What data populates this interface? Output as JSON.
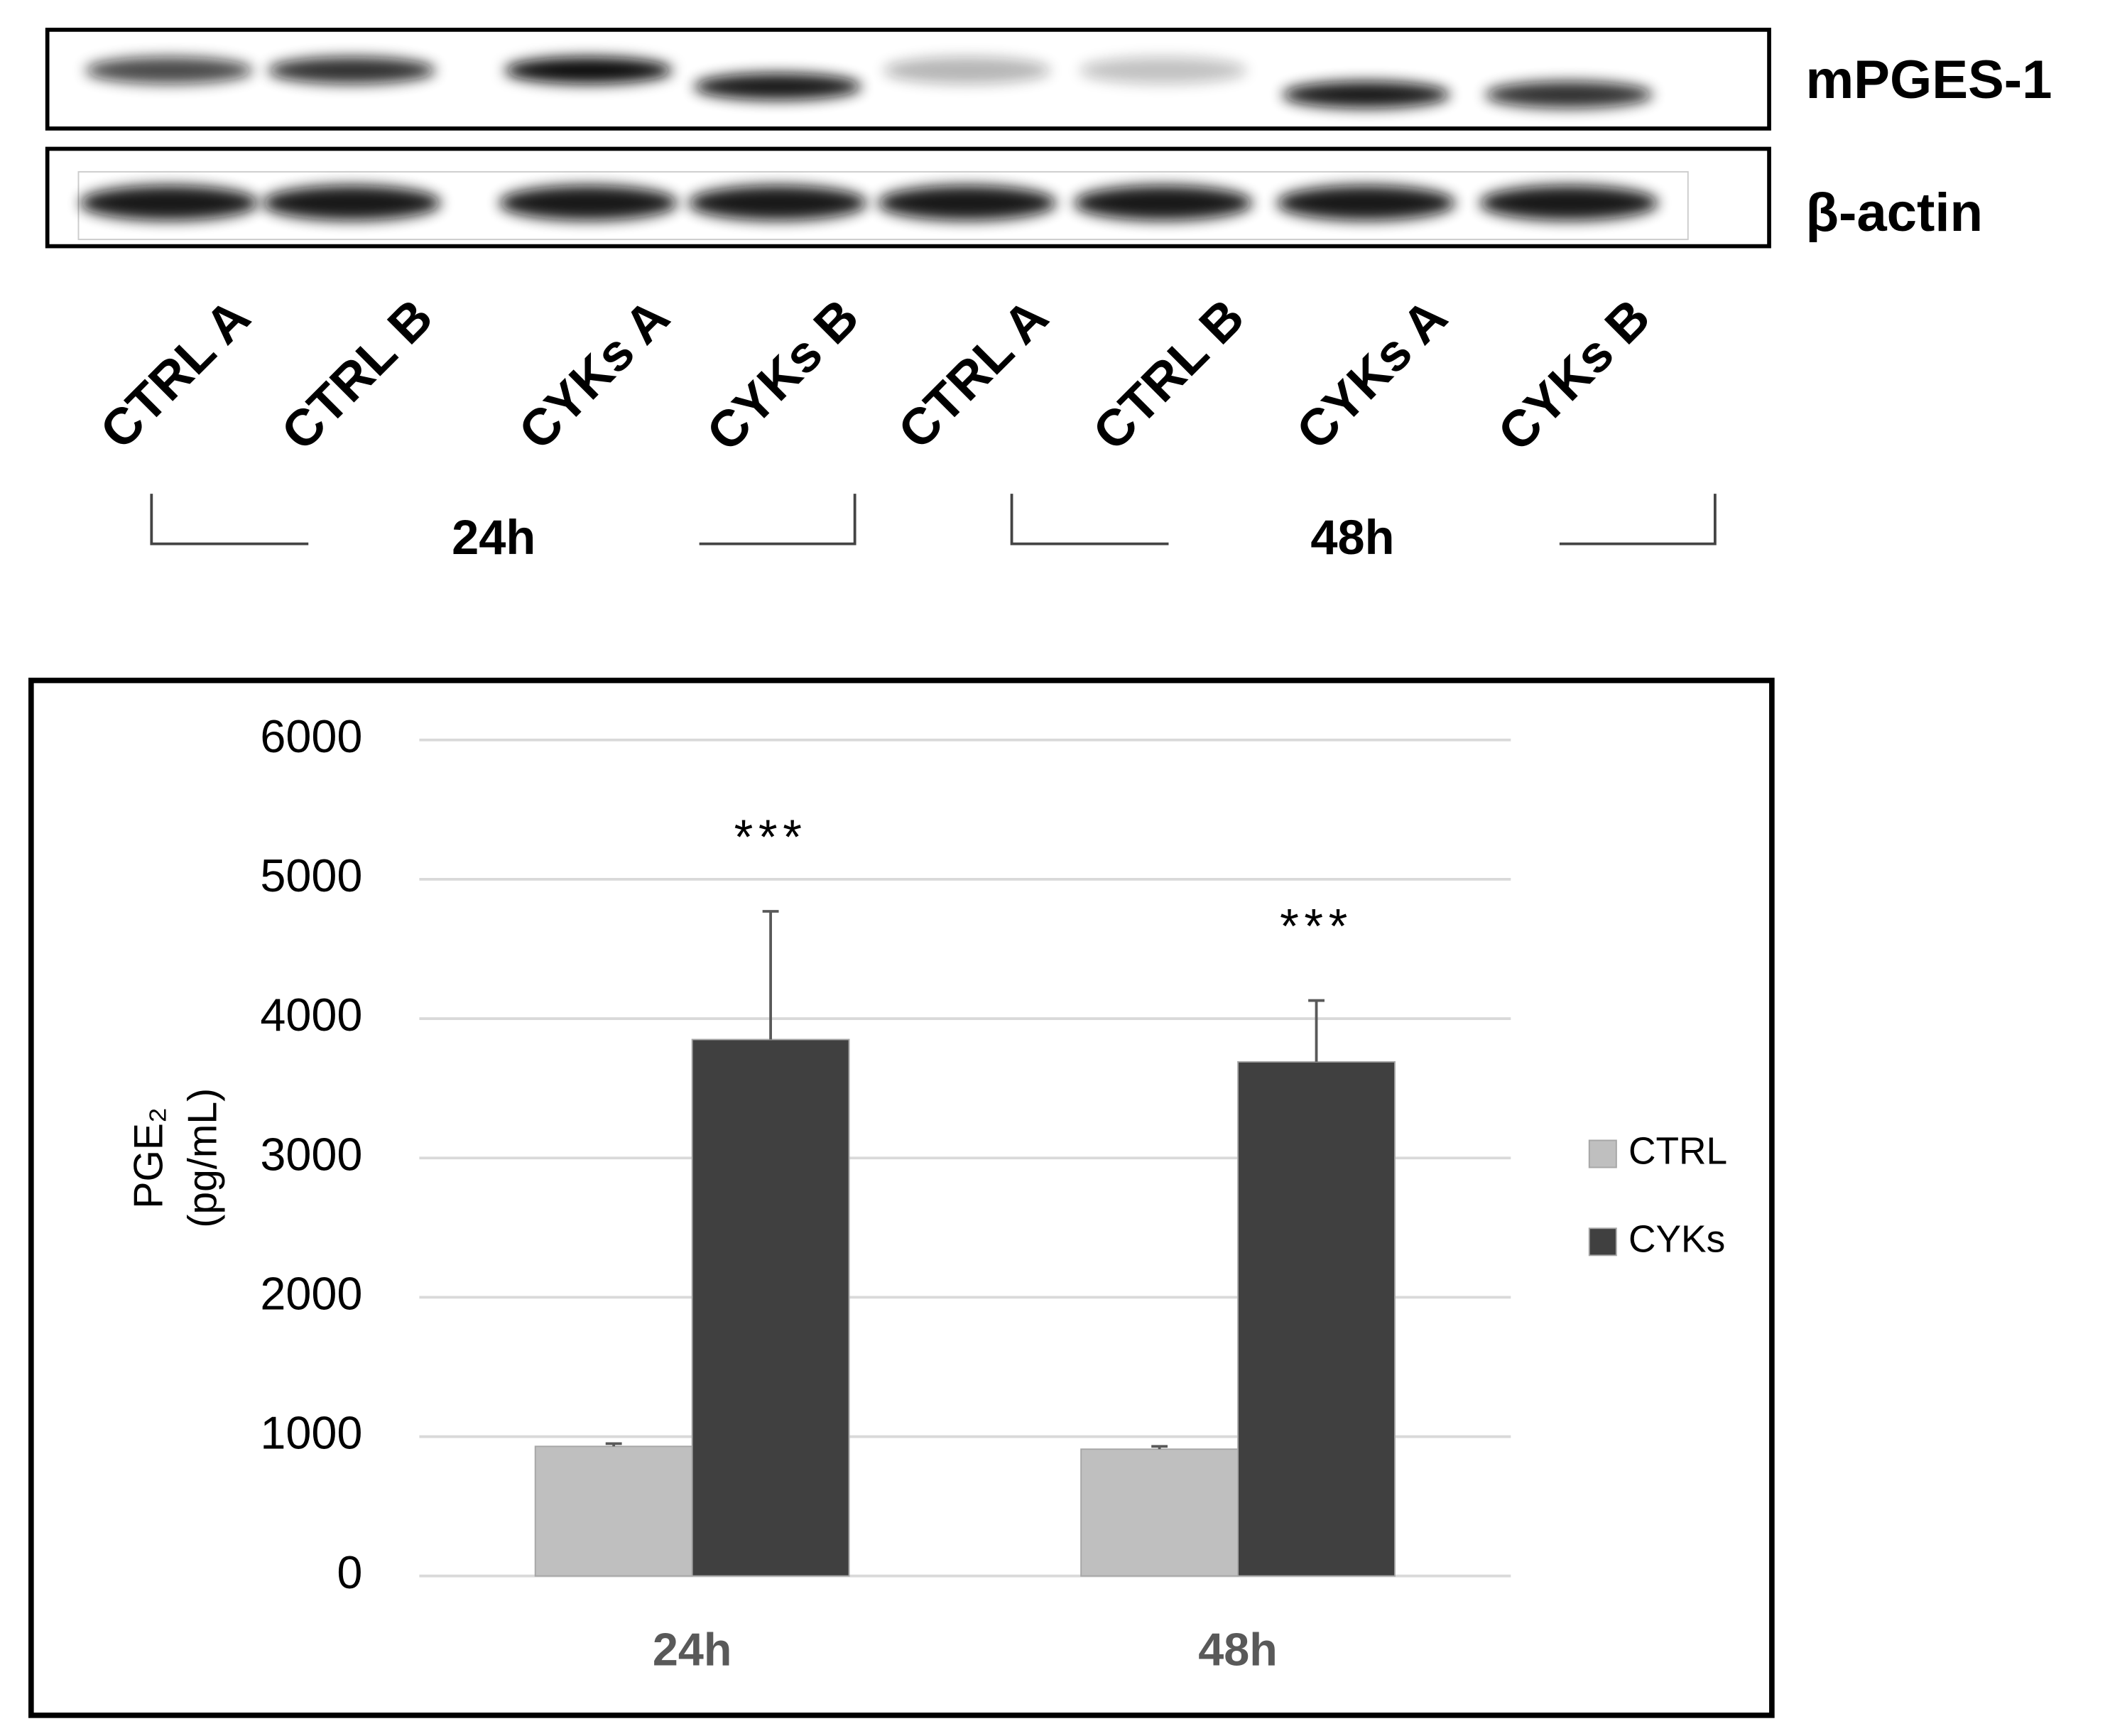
{
  "blot": {
    "rows": [
      "mPGES-1",
      "β-actin"
    ],
    "lanes": [
      "CTRL A",
      "CTRL B",
      "CYKs A",
      "CYKs B",
      "CTRL A",
      "CTRL B",
      "CYKs A",
      "CYKs B"
    ],
    "groups": [
      "24h",
      "48h"
    ]
  },
  "chart_data": {
    "type": "bar",
    "categories": [
      "24h",
      "48h"
    ],
    "series": [
      {
        "name": "CTRL",
        "color": "#bfbfbf",
        "values": [
          930,
          910
        ],
        "errors": [
          20,
          20
        ]
      },
      {
        "name": "CYKs",
        "color": "#404040",
        "values": [
          3850,
          3690
        ],
        "errors": [
          920,
          440
        ]
      }
    ],
    "annotations": [
      "***",
      "***"
    ],
    "y_label": [
      "PGE₂",
      "(pg/mL)"
    ],
    "ylim": [
      0,
      6000
    ],
    "yticks": [
      0,
      1000,
      2000,
      3000,
      4000,
      5000,
      6000
    ],
    "grid": true,
    "legend": "right"
  }
}
